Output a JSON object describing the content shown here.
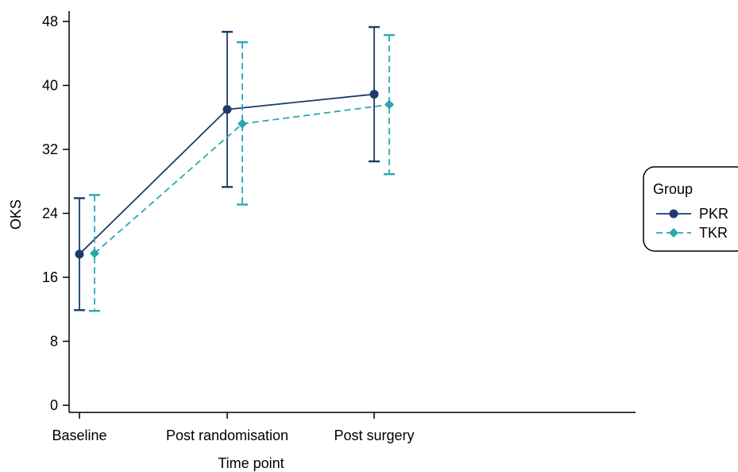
{
  "chart_data": {
    "type": "line",
    "categories": [
      "Baseline",
      "Post randomisation",
      "Post surgery"
    ],
    "xlabel": "Time point",
    "ylabel": "OKS",
    "ylim": [
      0,
      48
    ],
    "yticks": [
      0,
      8,
      16,
      24,
      32,
      40,
      48
    ],
    "grid": false,
    "legend_placement": "right",
    "legend_title": "Group",
    "series": [
      {
        "name": "PKR",
        "values": [
          18.9,
          37.0,
          38.9
        ],
        "error_lower": [
          11.9,
          27.3,
          30.5
        ],
        "error_upper": [
          25.9,
          46.7,
          47.3
        ],
        "color": "#1e3a6e",
        "marker": "circle",
        "line_style": "solid"
      },
      {
        "name": "TKR",
        "values": [
          19.0,
          35.2,
          37.6
        ],
        "error_lower": [
          11.8,
          25.1,
          28.9
        ],
        "error_upper": [
          26.3,
          45.4,
          46.3
        ],
        "color": "#2aa8b0",
        "marker": "diamond",
        "line_style": "dashed"
      }
    ]
  }
}
